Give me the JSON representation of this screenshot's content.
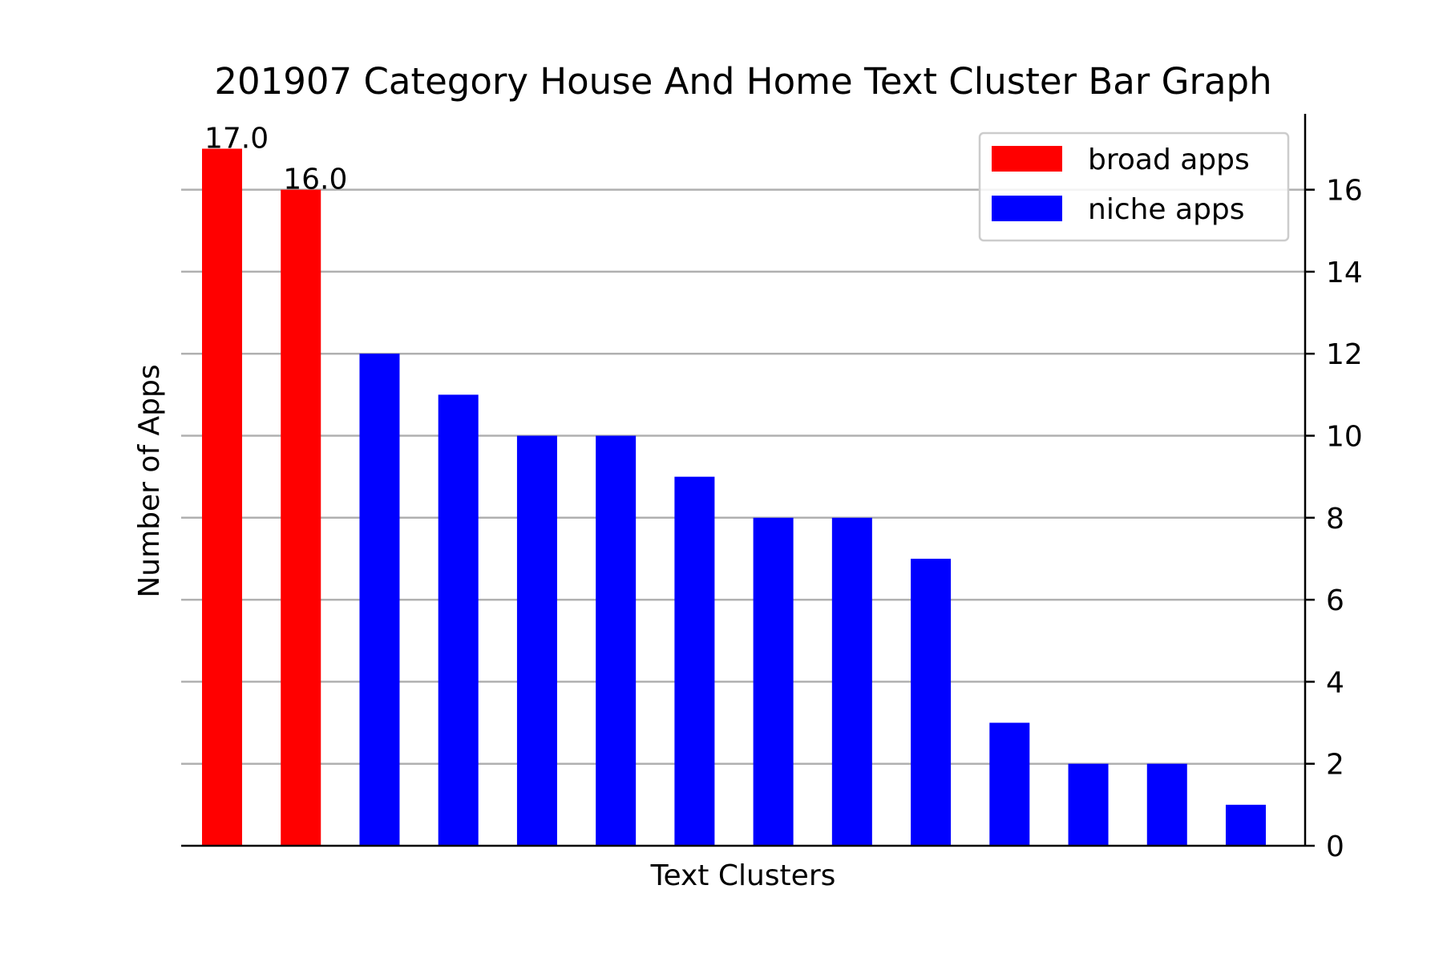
{
  "chart_data": {
    "type": "bar",
    "title": "201907 Category House And Home Text Cluster Bar Graph",
    "xlabel": "Text Clusters",
    "ylabel": "Number of Apps",
    "ylim": [
      0,
      17.85
    ],
    "yticks": [
      "0",
      "2",
      "4",
      "6",
      "8",
      "10",
      "12",
      "14",
      "16"
    ],
    "y_axis_side": "right",
    "grid": "horizontal",
    "legend_position": "top-right",
    "series": [
      {
        "name": "broad apps",
        "color": "#ff0000",
        "x": [
          0,
          1
        ],
        "values": [
          17,
          16
        ],
        "value_labels": [
          "17.0",
          "16.0"
        ]
      },
      {
        "name": "niche apps",
        "color": "#0000ff",
        "x": [
          2,
          3,
          4,
          5,
          6,
          7,
          8,
          9,
          10,
          11,
          12,
          13
        ],
        "values": [
          12,
          11,
          10,
          10,
          9,
          8,
          8,
          7,
          3,
          2,
          2,
          1
        ]
      }
    ]
  }
}
